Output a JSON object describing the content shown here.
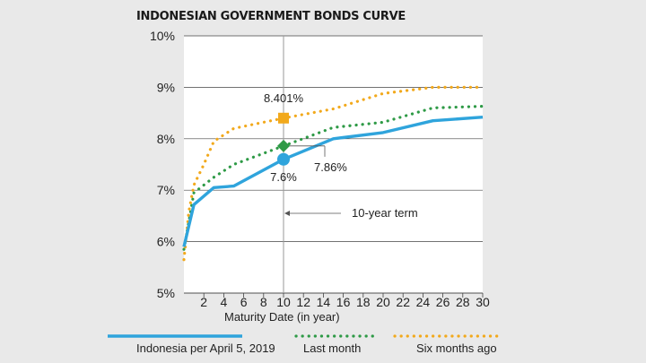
{
  "colors": {
    "background": "#e9e9e9",
    "plot_background": "#ffffff",
    "gridline": "#444444",
    "indonesia": "#2fa4dc",
    "last_month": "#2e9a46",
    "six_months": "#f2a91c"
  },
  "chart_data": {
    "type": "line",
    "title": "INDONESIAN GOVERNMENT BONDS CURVE",
    "xlabel": "Maturity Date (in year)",
    "ylabel": "",
    "xlim": [
      0,
      30
    ],
    "ylim": [
      5,
      10
    ],
    "x_ticks": [
      "2",
      "4",
      "6",
      "8",
      "10",
      "12",
      "14",
      "16",
      "18",
      "20",
      "22",
      "24",
      "26",
      "28",
      "30"
    ],
    "y_ticks": [
      "5%",
      "6%",
      "7%",
      "8%",
      "9%",
      "10%"
    ],
    "grid": "horizontal",
    "series": [
      {
        "name": "Indonesia per April 5, 2019",
        "style": "solid",
        "color": "#2fa4dc",
        "x": [
          0,
          1,
          3,
          5,
          10,
          15,
          20,
          25,
          30
        ],
        "y": [
          5.9,
          6.72,
          7.05,
          7.08,
          7.6,
          8.0,
          8.12,
          8.35,
          8.42
        ]
      },
      {
        "name": "Last month",
        "style": "dotted",
        "color": "#2e9a46",
        "x": [
          0,
          1,
          3,
          5,
          10,
          15,
          20,
          25,
          30
        ],
        "y": [
          5.85,
          6.95,
          7.25,
          7.5,
          7.86,
          8.22,
          8.32,
          8.6,
          8.63
        ]
      },
      {
        "name": "Six months ago",
        "style": "dotted",
        "color": "#f2a91c",
        "x": [
          0,
          0.5,
          1,
          2,
          3,
          5,
          10,
          15,
          20,
          25,
          30
        ],
        "y": [
          5.65,
          6.6,
          7.1,
          7.5,
          7.95,
          8.2,
          8.4,
          8.58,
          8.88,
          9.0,
          9.0
        ]
      }
    ],
    "markers": [
      {
        "x": 10,
        "y": 8.401,
        "shape": "square",
        "color": "#f2a91c",
        "label": "8.401%"
      },
      {
        "x": 10,
        "y": 7.86,
        "shape": "diamond",
        "color": "#2e9a46",
        "label": "7.86%"
      },
      {
        "x": 10,
        "y": 7.6,
        "shape": "circle",
        "color": "#2fa4dc",
        "label": "7.6%"
      }
    ],
    "reference_line": {
      "x": 10,
      "label": "10-year term"
    },
    "legend_placement": "bottom"
  }
}
